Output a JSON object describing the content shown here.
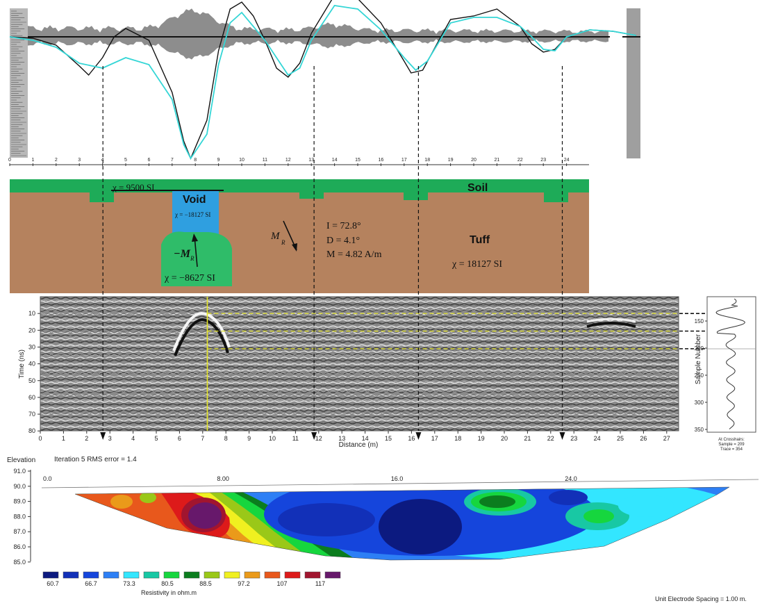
{
  "chart_data": [
    {
      "type": "line",
      "panel": "magnetic-profile",
      "x_ticks": [
        "0",
        "1",
        "2",
        "3",
        "4",
        "5",
        "6",
        "7",
        "8",
        "9",
        "10",
        "11",
        "12",
        "13",
        "14",
        "15",
        "16",
        "17",
        "18",
        "19",
        "20",
        "21",
        "22",
        "23",
        "24"
      ],
      "series": [
        {
          "color": "#111111",
          "x": [
            0,
            1,
            2,
            3,
            3.4,
            4,
            4.5,
            5,
            6,
            7,
            7.5,
            7.8,
            8.5,
            9,
            9.5,
            10,
            10.5,
            11,
            11.5,
            12,
            12.5,
            13,
            14,
            15,
            16,
            17,
            17.3,
            17.8,
            18.5,
            19,
            20,
            21,
            22,
            22.5,
            23,
            23.5,
            24,
            25,
            26,
            27
          ],
          "y": [
            0,
            -2,
            -12,
            -42,
            -55,
            -30,
            0,
            12,
            -5,
            -80,
            -150,
            -175,
            -120,
            -20,
            40,
            50,
            30,
            -5,
            -45,
            -58,
            -38,
            5,
            60,
            55,
            20,
            -35,
            -52,
            -48,
            -5,
            25,
            30,
            40,
            15,
            -10,
            -22,
            -18,
            0,
            10,
            8,
            2
          ]
        },
        {
          "color": "#34d6d6",
          "x": [
            0,
            1,
            2,
            3,
            4,
            5,
            6,
            7,
            7.5,
            7.8,
            8.5,
            9,
            9.5,
            10,
            11,
            12,
            12.5,
            13,
            14,
            15,
            16,
            17,
            17.5,
            18,
            19,
            20,
            21,
            22,
            22.5,
            23,
            23.5,
            24,
            25,
            26,
            27
          ],
          "y": [
            0,
            -5,
            -15,
            -38,
            -45,
            -30,
            -40,
            -90,
            -155,
            -175,
            -140,
            -40,
            20,
            35,
            -5,
            -55,
            -45,
            -5,
            45,
            40,
            10,
            -30,
            -48,
            -35,
            20,
            28,
            28,
            15,
            0,
            -18,
            -20,
            0,
            10,
            8,
            2
          ]
        }
      ]
    },
    {
      "type": "area",
      "panel": "geologic-model",
      "x_ticks": [
        "0",
        "1",
        "2",
        "3",
        "4",
        "5",
        "6",
        "7",
        "8",
        "9",
        "10",
        "11",
        "12",
        "13",
        "14",
        "15",
        "16",
        "17",
        "18",
        "19",
        "20",
        "21",
        "22",
        "23",
        "24"
      ],
      "labels": {
        "soil": "Soil",
        "void": "Void",
        "tuff": "Tuff",
        "chi_soil": "χ = 9500 SI",
        "chi_void": "χ = −18127 SI",
        "chi_body": "χ = −8627 SI",
        "chi_tuff": "χ = 18127 SI",
        "neg_mr": "−M",
        "mr": "M",
        "sub_r": "R",
        "inc": "I = 72.8°",
        "dec": "D = 4.1°",
        "mrv": "M = 4.82 A/m"
      }
    },
    {
      "type": "heatmap",
      "panel": "gpr-radargram",
      "xlabel": "Distance (m)",
      "ylabel": "Time (ns)",
      "x_ticks": [
        "0",
        "1",
        "2",
        "3",
        "4",
        "5",
        "6",
        "7",
        "8",
        "9",
        "10",
        "11",
        "12",
        "13",
        "14",
        "15",
        "16",
        "17",
        "18",
        "19",
        "20",
        "21",
        "22",
        "23",
        "24",
        "25",
        "26",
        "27"
      ],
      "y_ticks": [
        "10",
        "20",
        "30",
        "40",
        "50",
        "60",
        "70",
        "80"
      ],
      "xlim": [
        0,
        27.5
      ],
      "ylim": [
        0,
        80
      ],
      "crosshair_x": 7.2,
      "reflectors_ns": {
        "C": 10,
        "V": 20.5,
        "B": 31
      },
      "trace_panel": {
        "ylabel": "Sample Number",
        "y_ticks": [
          "150",
          "200",
          "250",
          "300",
          "350"
        ],
        "caption1": "At Crosshairs:",
        "caption2": "Sample = 209",
        "caption3": "Trace = 354"
      }
    },
    {
      "type": "heatmap",
      "panel": "ert-section",
      "title": "Iteration 5 RMS error = 1.4",
      "ylabel": "Elevation",
      "y_ticks": [
        "91.0",
        "90.0",
        "89.0",
        "88.0",
        "87.0",
        "86.0",
        "85.0"
      ],
      "x_ticks": [
        "0.0",
        "8.00",
        "16.0",
        "24.0"
      ],
      "xlim": [
        0,
        32
      ],
      "ylim": [
        85,
        91
      ],
      "legend_title": "Resistivity in ohm.m",
      "legend_values": [
        "60.7",
        "66.7",
        "73.3",
        "80.5",
        "88.5",
        "97.2",
        "107",
        "117"
      ],
      "legend_colors": [
        "#0c1a80",
        "#1230b8",
        "#1545dc",
        "#2d7ff5",
        "#33e6ff",
        "#18c8a4",
        "#16d63e",
        "#0b7d1e",
        "#9ac818",
        "#f0f020",
        "#ea9a1a",
        "#e8581c",
        "#dd1a1a",
        "#a1152f",
        "#67186b"
      ],
      "footer": "Unit Electrode Spacing = 1.00 m."
    }
  ],
  "colors": {
    "soil": "#1eab58",
    "tuff": "#b5825e",
    "void": "#2f9fe0",
    "body": "#2fbc69",
    "guide": "#e6e62a"
  }
}
